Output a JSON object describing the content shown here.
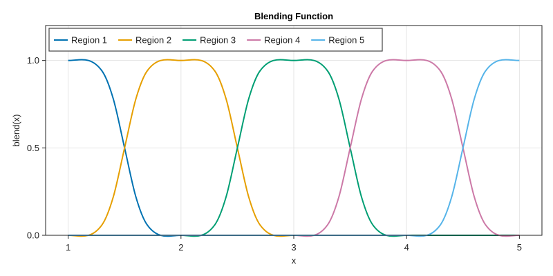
{
  "chart_data": {
    "type": "line",
    "title": "Blending Function",
    "xlabel": "x",
    "ylabel": "blend(x)",
    "xlim": [
      0.8,
      5.2
    ],
    "ylim": [
      0.0,
      1.2
    ],
    "x_ticks": [
      1,
      2,
      3,
      4,
      5
    ],
    "y_ticks": [
      0.0,
      0.5,
      1.0
    ],
    "y_tick_labels": [
      "0.0",
      "0.5",
      "1.0"
    ],
    "grid": true,
    "legend_position": "top-left",
    "series": [
      {
        "name": "Region 1",
        "color": "#0072b2",
        "x": [
          1.0,
          1.3,
          1.4,
          1.5,
          1.6,
          1.7,
          2.0,
          5.0
        ],
        "y": [
          1.0,
          0.94,
          0.78,
          0.5,
          0.22,
          0.06,
          0.0,
          0.0
        ]
      },
      {
        "name": "Region 2",
        "color": "#e69f00",
        "x": [
          1.0,
          1.3,
          1.4,
          1.5,
          1.6,
          1.7,
          2.0,
          2.3,
          2.4,
          2.5,
          2.6,
          2.7,
          3.0,
          5.0
        ],
        "y": [
          0.0,
          0.06,
          0.22,
          0.5,
          0.78,
          0.94,
          1.0,
          0.94,
          0.78,
          0.5,
          0.22,
          0.06,
          0.0,
          0.0
        ]
      },
      {
        "name": "Region 3",
        "color": "#009e73",
        "x": [
          1.0,
          2.0,
          2.3,
          2.4,
          2.5,
          2.6,
          2.7,
          3.0,
          3.3,
          3.4,
          3.5,
          3.6,
          3.7,
          4.0,
          5.0
        ],
        "y": [
          0.0,
          0.0,
          0.06,
          0.22,
          0.5,
          0.78,
          0.94,
          1.0,
          0.94,
          0.78,
          0.5,
          0.22,
          0.06,
          0.0,
          0.0
        ]
      },
      {
        "name": "Region 4",
        "color": "#cc79a7",
        "x": [
          1.0,
          3.0,
          3.3,
          3.4,
          3.5,
          3.6,
          3.7,
          4.0,
          4.3,
          4.4,
          4.5,
          4.6,
          4.7,
          5.0
        ],
        "y": [
          0.0,
          0.0,
          0.06,
          0.22,
          0.5,
          0.78,
          0.94,
          1.0,
          0.94,
          0.78,
          0.5,
          0.22,
          0.06,
          0.0
        ]
      },
      {
        "name": "Region 5",
        "color": "#56b4e9",
        "x": [
          1.0,
          4.0,
          4.3,
          4.4,
          4.5,
          4.6,
          4.7,
          5.0
        ],
        "y": [
          0.0,
          0.0,
          0.06,
          0.22,
          0.5,
          0.78,
          0.94,
          1.0
        ]
      }
    ]
  }
}
